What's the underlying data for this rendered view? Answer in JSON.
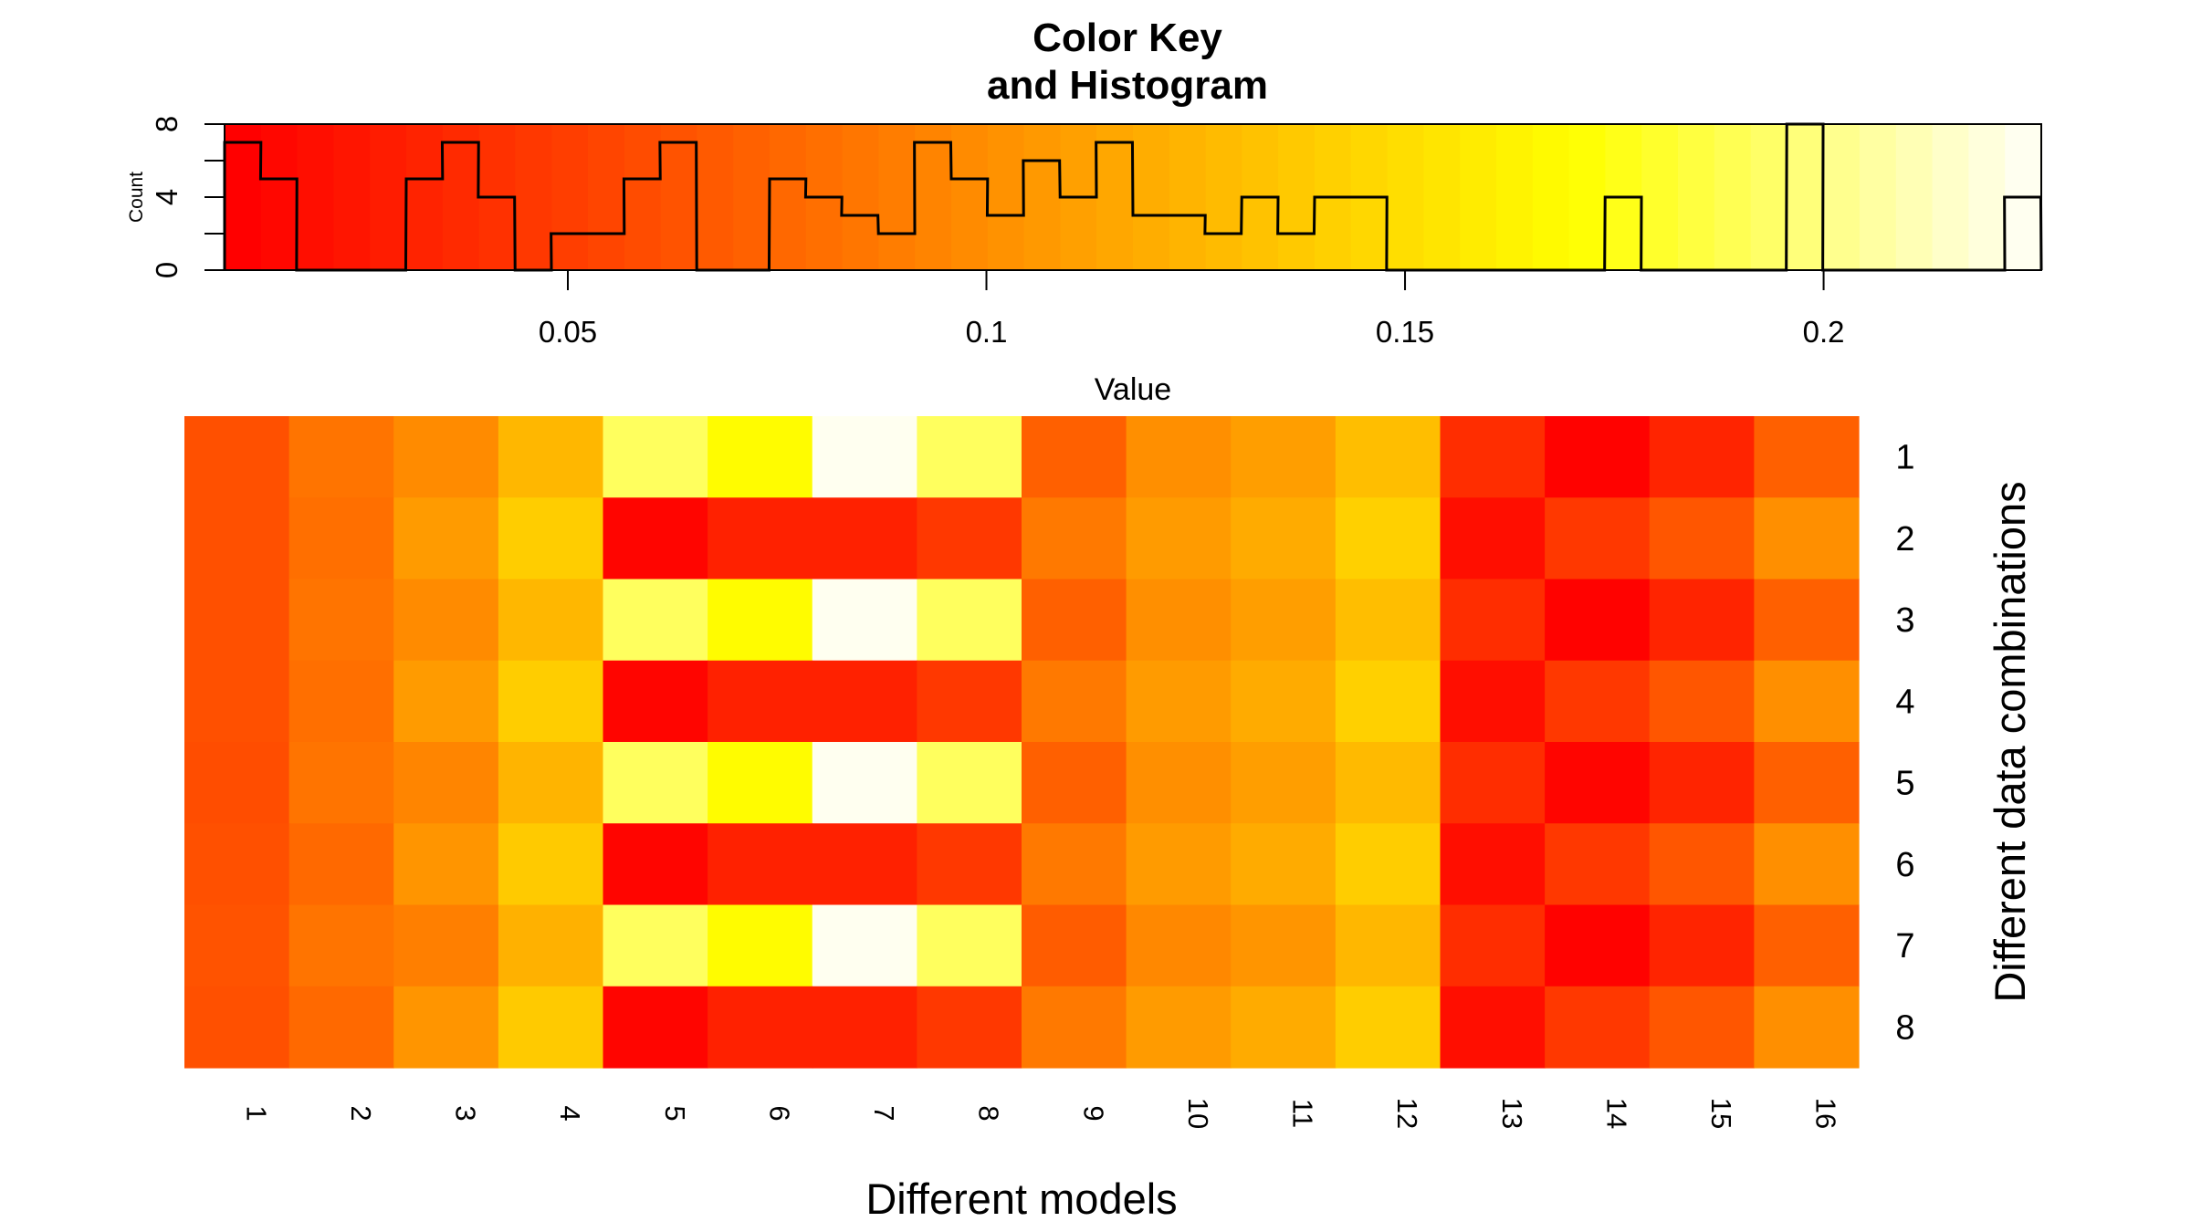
{
  "chart_data": {
    "type": "heatmap",
    "title_lines": [
      "Color Key",
      "and Histogram"
    ],
    "color_key": {
      "xlabel": "Value",
      "ylabel": "Count",
      "xlim": [
        0.009,
        0.226
      ],
      "ylim": [
        0,
        8
      ],
      "x_ticks": [
        0.05,
        0.1,
        0.15,
        0.2
      ],
      "x_tick_labels": [
        "0.05",
        "0.1",
        "0.15",
        "0.2"
      ],
      "y_ticks": [
        0,
        4,
        8
      ],
      "y_tick_labels": [
        "0",
        "4",
        "8"
      ],
      "steps": 50,
      "palette": "heat",
      "histogram_steps": [
        [
          0.009,
          7
        ],
        [
          0.0133,
          5
        ],
        [
          0.0176,
          0
        ],
        [
          0.022,
          0
        ],
        [
          0.0263,
          0
        ],
        [
          0.0307,
          5
        ],
        [
          0.035,
          7
        ],
        [
          0.0393,
          4
        ],
        [
          0.0437,
          0
        ],
        [
          0.048,
          2
        ],
        [
          0.0524,
          2
        ],
        [
          0.0567,
          5
        ],
        [
          0.061,
          7
        ],
        [
          0.0654,
          0
        ],
        [
          0.0697,
          0
        ],
        [
          0.0741,
          5
        ],
        [
          0.0784,
          4
        ],
        [
          0.0827,
          3
        ],
        [
          0.0871,
          2
        ],
        [
          0.0914,
          7
        ],
        [
          0.0958,
          5
        ],
        [
          0.1001,
          3
        ],
        [
          0.1044,
          6
        ],
        [
          0.1088,
          4
        ],
        [
          0.1131,
          7
        ],
        [
          0.1175,
          3
        ],
        [
          0.1218,
          3
        ],
        [
          0.1261,
          2
        ],
        [
          0.1305,
          4
        ],
        [
          0.1348,
          2
        ],
        [
          0.1392,
          4
        ],
        [
          0.1435,
          4
        ],
        [
          0.1478,
          0
        ],
        [
          0.1522,
          0
        ],
        [
          0.1565,
          0
        ],
        [
          0.1609,
          0
        ],
        [
          0.1652,
          0
        ],
        [
          0.1695,
          0
        ],
        [
          0.1739,
          4
        ],
        [
          0.1782,
          0
        ],
        [
          0.1826,
          0
        ],
        [
          0.1869,
          0
        ],
        [
          0.1912,
          0
        ],
        [
          0.1956,
          8
        ],
        [
          0.1999,
          0
        ],
        [
          0.2043,
          0
        ],
        [
          0.2086,
          0
        ],
        [
          0.2129,
          0
        ],
        [
          0.2173,
          0
        ],
        [
          0.2216,
          4
        ]
      ]
    },
    "heatmap": {
      "xlabel": "Different models",
      "ylabel": "Different data combinations",
      "columns": [
        "1",
        "2",
        "3",
        "4",
        "5",
        "6",
        "7",
        "8",
        "9",
        "10",
        "11",
        "12",
        "13",
        "14",
        "15",
        "16"
      ],
      "rows": [
        "1",
        "2",
        "3",
        "4",
        "5",
        "6",
        "7",
        "8"
      ],
      "values": [
        [
          0.06,
          0.083,
          0.098,
          0.126,
          0.193,
          0.17,
          0.226,
          0.193,
          0.07,
          0.1,
          0.11,
          0.13,
          0.038,
          0.01,
          0.032,
          0.07
        ],
        [
          0.06,
          0.08,
          0.108,
          0.14,
          0.012,
          0.03,
          0.03,
          0.045,
          0.086,
          0.108,
          0.118,
          0.142,
          0.018,
          0.045,
          0.064,
          0.1
        ],
        [
          0.06,
          0.083,
          0.098,
          0.126,
          0.193,
          0.17,
          0.226,
          0.193,
          0.07,
          0.1,
          0.11,
          0.13,
          0.038,
          0.01,
          0.032,
          0.07
        ],
        [
          0.06,
          0.08,
          0.108,
          0.14,
          0.012,
          0.03,
          0.03,
          0.045,
          0.086,
          0.108,
          0.118,
          0.142,
          0.018,
          0.045,
          0.064,
          0.1
        ],
        [
          0.058,
          0.083,
          0.094,
          0.124,
          0.193,
          0.17,
          0.226,
          0.193,
          0.07,
          0.1,
          0.11,
          0.128,
          0.038,
          0.012,
          0.032,
          0.07
        ],
        [
          0.06,
          0.076,
          0.104,
          0.138,
          0.012,
          0.03,
          0.03,
          0.045,
          0.086,
          0.108,
          0.118,
          0.14,
          0.018,
          0.045,
          0.064,
          0.1
        ],
        [
          0.062,
          0.083,
          0.09,
          0.122,
          0.193,
          0.17,
          0.226,
          0.193,
          0.068,
          0.096,
          0.104,
          0.126,
          0.038,
          0.01,
          0.032,
          0.07
        ],
        [
          0.06,
          0.076,
          0.104,
          0.138,
          0.012,
          0.03,
          0.03,
          0.045,
          0.086,
          0.108,
          0.118,
          0.14,
          0.018,
          0.045,
          0.064,
          0.1
        ]
      ]
    }
  }
}
